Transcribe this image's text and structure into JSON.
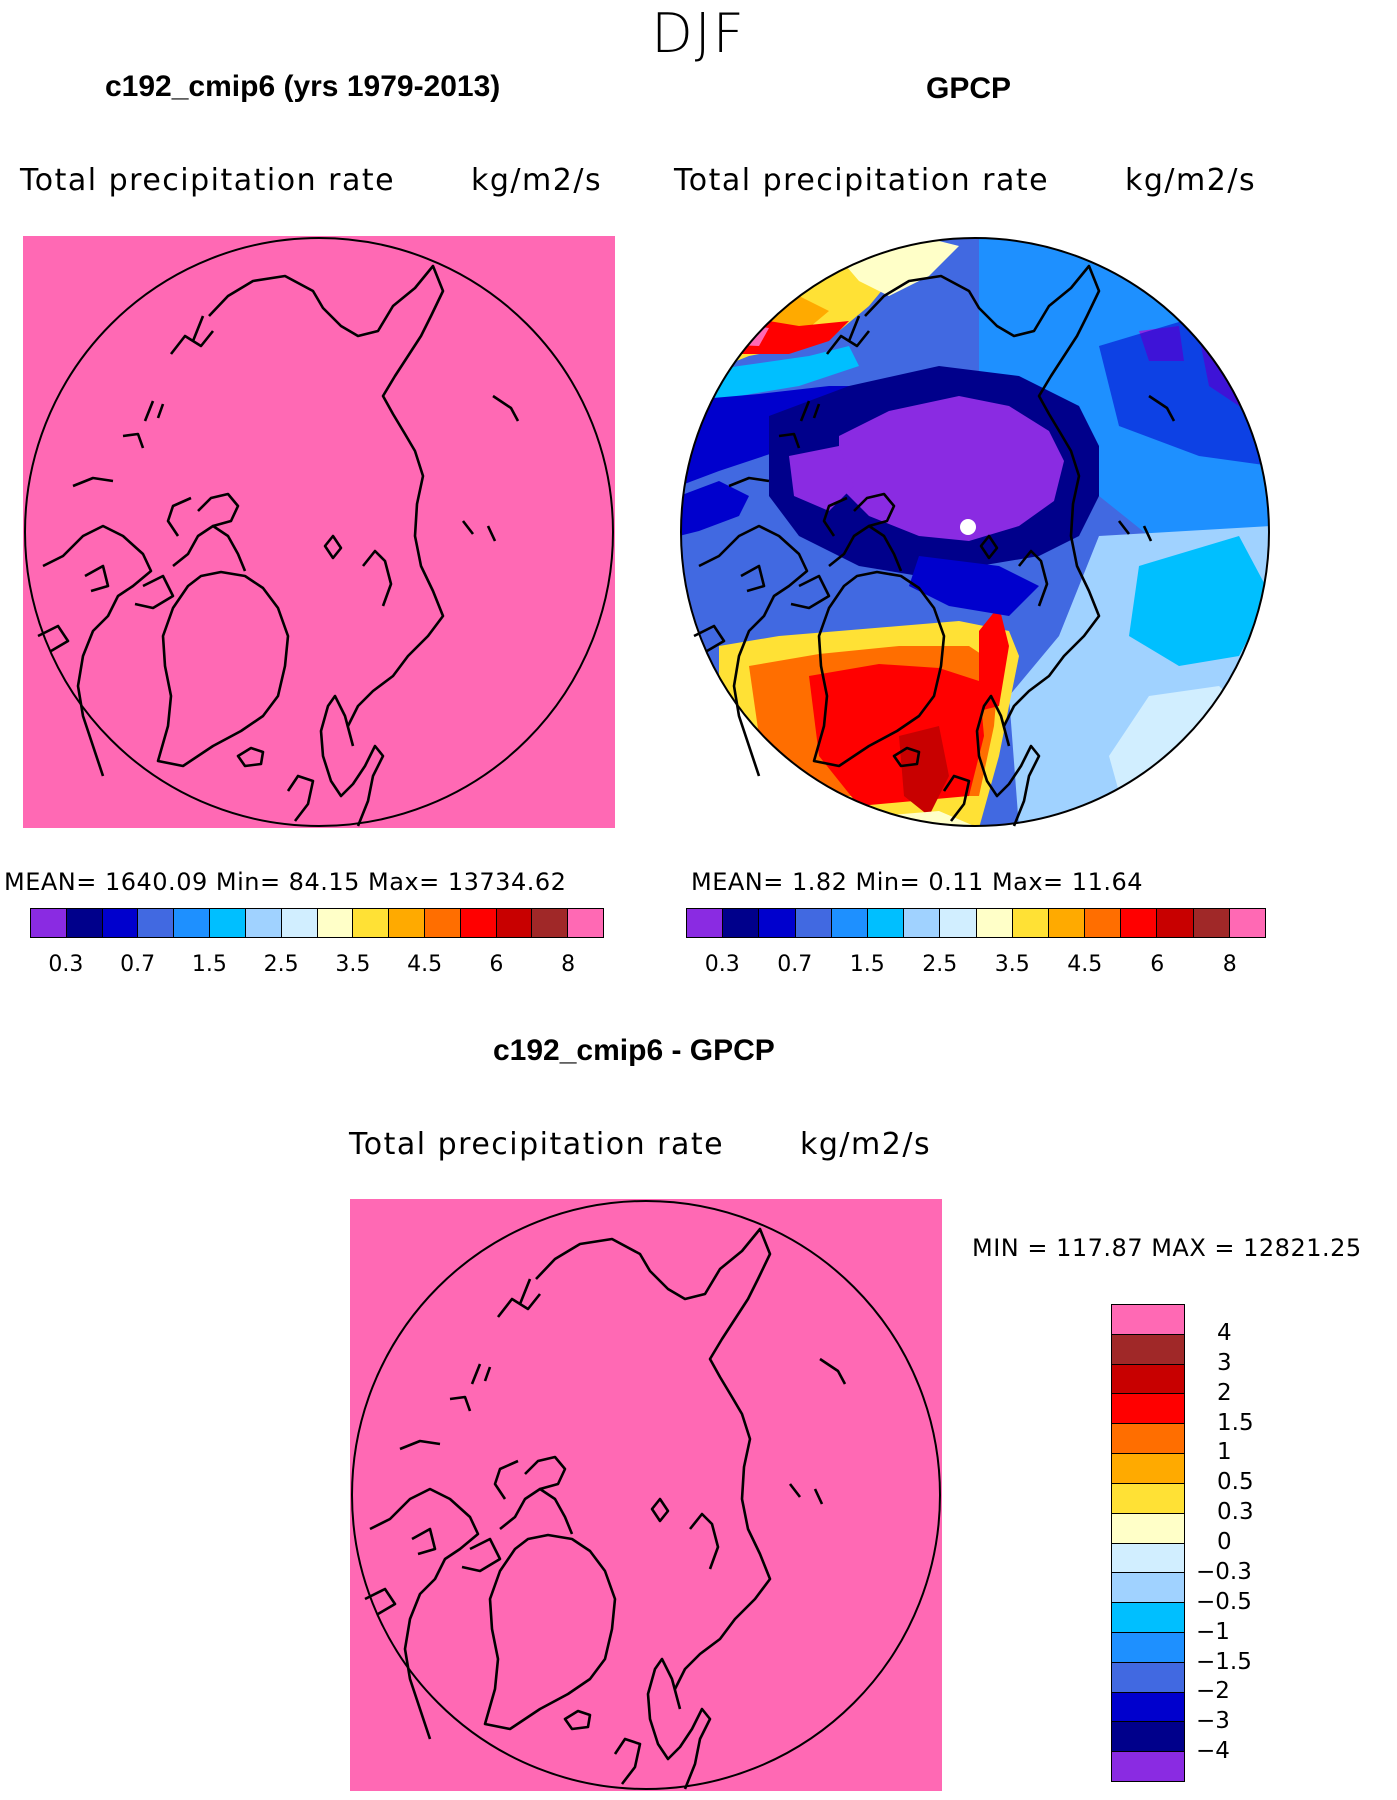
{
  "season": "DJF",
  "panels": {
    "model": {
      "title": "c192_cmip6 (yrs 1979-2013)",
      "field_label": "Total precipitation rate",
      "units": "kg/m2/s",
      "stats": "MEAN=  1640.09   Min=   84.15   Max=  13734.62"
    },
    "obs": {
      "title": "GPCP",
      "field_label": "Total precipitation rate",
      "units": "kg/m2/s",
      "stats": "MEAN=      1.82   Min=     0.11   Max=    11.64"
    },
    "diff": {
      "title": "c192_cmip6 - GPCP",
      "field_label": "Total precipitation rate",
      "units": "kg/m2/s",
      "stats": "MIN = 117.87 MAX = 12821.25"
    }
  },
  "colorbar_abs": {
    "colors": [
      "#8a2be2",
      "#00008b",
      "#0000cd",
      "#4169e1",
      "#1e90ff",
      "#00bfff",
      "#a0d2ff",
      "#d1eeff",
      "#ffffc8",
      "#ffe135",
      "#ffaa00",
      "#ff6e00",
      "#ff0000",
      "#c80000",
      "#a02828",
      "#ff69b4"
    ],
    "labels": [
      "0.3",
      "0.7",
      "1.5",
      "2.5",
      "3.5",
      "4.5",
      "6",
      "8"
    ]
  },
  "colorbar_diff": {
    "colors": [
      "#ff69b4",
      "#a02828",
      "#c80000",
      "#ff0000",
      "#ff6e00",
      "#ffaa00",
      "#ffe135",
      "#ffffc8",
      "#d1eeff",
      "#a0d2ff",
      "#00bfff",
      "#1e90ff",
      "#4169e1",
      "#0000cd",
      "#00008b",
      "#8a2be2"
    ],
    "labels": [
      "4",
      "3",
      "2",
      "1.5",
      "1",
      "0.5",
      "0.3",
      "0",
      "−0.3",
      "−0.5",
      "−1",
      "−1.5",
      "−2",
      "−3",
      "−4"
    ]
  },
  "map_colors": {
    "saturated_fill": "#ff69b4"
  }
}
